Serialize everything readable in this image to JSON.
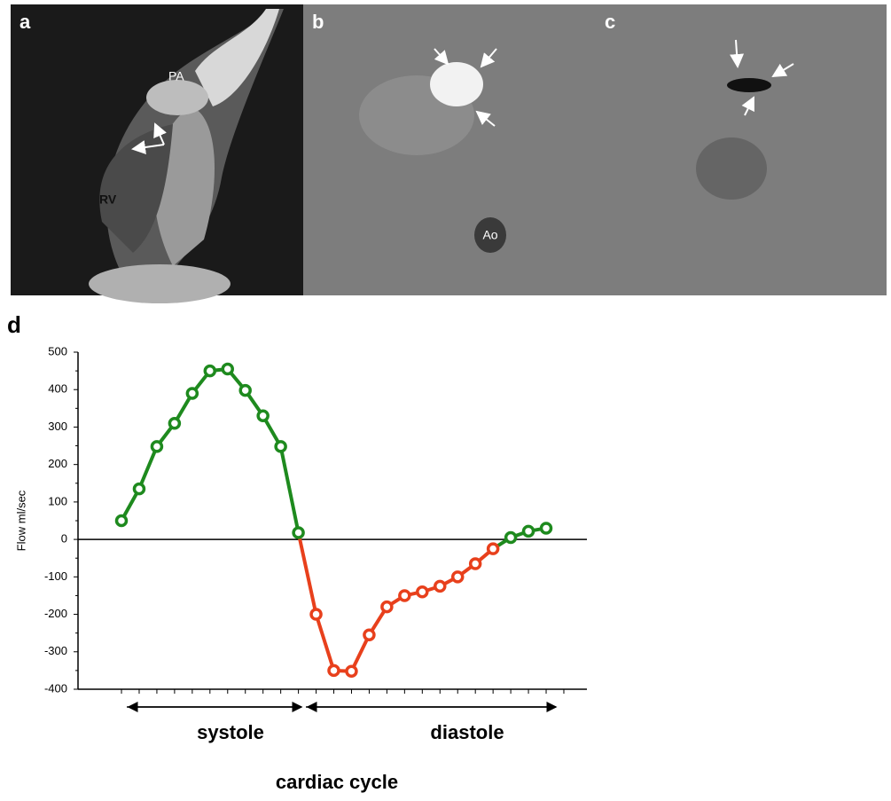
{
  "panels": {
    "a": {
      "label": "a",
      "annotations": [
        "PA",
        "RV"
      ]
    },
    "b": {
      "label": "b",
      "annotations": [
        "Ao"
      ]
    },
    "c": {
      "label": "c"
    }
  },
  "chart_data": {
    "type": "line",
    "label": "d",
    "ylabel": "Flow ml/sec",
    "series": [
      {
        "values": [
          50,
          135,
          248,
          310,
          390,
          450,
          455,
          398,
          330,
          248,
          18,
          -200,
          -350,
          -352,
          -255,
          -180,
          -150,
          -140,
          -125,
          -100,
          -65,
          -25,
          5,
          22,
          30
        ]
      }
    ],
    "positive_color": "#1e8a1e",
    "negative_color": "#e8401c",
    "ylim": [
      -400,
      500
    ],
    "yticks": [
      -400,
      -300,
      -200,
      -100,
      0,
      100,
      200,
      300,
      400,
      500
    ],
    "annotations": [
      "systole",
      "diastole"
    ],
    "xlabel": "cardiac cycle"
  }
}
